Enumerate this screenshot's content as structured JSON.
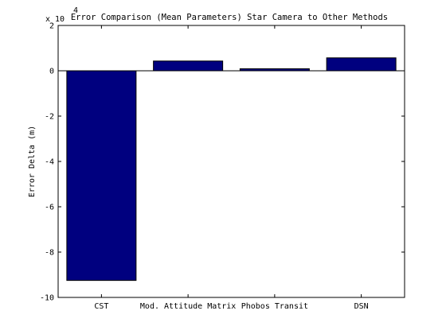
{
  "chart_data": {
    "type": "bar",
    "title": "Error Comparison (Mean Parameters) Star Camera to Other Methods",
    "xlabel": "",
    "ylabel": "Error Delta (m)",
    "y_multiplier_label": "x 10",
    "y_multiplier_exponent": "4",
    "categories": [
      "CST",
      "Mod. Attitude Matrix",
      "Phobos Transit",
      "DSN"
    ],
    "values": [
      -92500,
      4300,
      900,
      5700
    ],
    "ylim": [
      -100000,
      20000
    ],
    "yticks": [
      -100000,
      -80000,
      -60000,
      -40000,
      -20000,
      0,
      20000
    ],
    "ytick_labels": [
      "-10",
      "-8",
      "-6",
      "-4",
      "-2",
      "0",
      "2"
    ],
    "grid": false,
    "legend": "none",
    "bar_color": "#00007f"
  }
}
